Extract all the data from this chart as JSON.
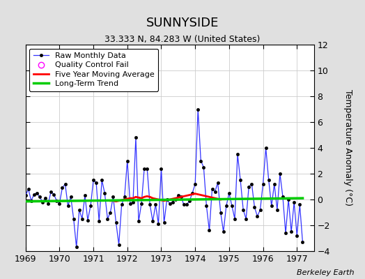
{
  "title": "SUNNYSIDE",
  "subtitle": "33.333 N, 84.283 W (United States)",
  "ylabel": "Temperature Anomaly (°C)",
  "watermark": "Berkeley Earth",
  "xlim": [
    1969.0,
    1977.5
  ],
  "ylim": [
    -4,
    12
  ],
  "yticks": [
    -4,
    -2,
    0,
    2,
    4,
    6,
    8,
    10,
    12
  ],
  "xticks": [
    1969,
    1970,
    1971,
    1972,
    1973,
    1974,
    1975,
    1976,
    1977
  ],
  "background_color": "#e0e0e0",
  "plot_bg_color": "#ffffff",
  "raw_color": "#3333ff",
  "raw_markersize": 3,
  "raw_linewidth": 0.9,
  "moving_avg_color": "#ff0000",
  "moving_avg_linewidth": 2.0,
  "trend_color": "#00cc00",
  "trend_linewidth": 2.5,
  "raw_x": [
    1969.0,
    1969.083,
    1969.167,
    1969.25,
    1969.333,
    1969.417,
    1969.5,
    1969.583,
    1969.667,
    1969.75,
    1969.833,
    1969.917,
    1970.0,
    1970.083,
    1970.167,
    1970.25,
    1970.333,
    1970.417,
    1970.5,
    1970.583,
    1970.667,
    1970.75,
    1970.833,
    1970.917,
    1971.0,
    1971.083,
    1971.167,
    1971.25,
    1971.333,
    1971.417,
    1971.5,
    1971.583,
    1971.667,
    1971.75,
    1971.833,
    1971.917,
    1972.0,
    1972.083,
    1972.167,
    1972.25,
    1972.333,
    1972.417,
    1972.5,
    1972.583,
    1972.667,
    1972.75,
    1972.833,
    1972.917,
    1973.0,
    1973.083,
    1973.167,
    1973.25,
    1973.333,
    1973.417,
    1973.5,
    1973.583,
    1973.667,
    1973.75,
    1973.833,
    1973.917,
    1974.0,
    1974.083,
    1974.167,
    1974.25,
    1974.333,
    1974.417,
    1974.5,
    1974.583,
    1974.667,
    1974.75,
    1974.833,
    1974.917,
    1975.0,
    1975.083,
    1975.167,
    1975.25,
    1975.333,
    1975.417,
    1975.5,
    1975.583,
    1975.667,
    1975.75,
    1975.833,
    1975.917,
    1976.0,
    1976.083,
    1976.167,
    1976.25,
    1976.333,
    1976.417,
    1976.5,
    1976.583,
    1976.667,
    1976.75,
    1976.833,
    1976.917,
    1977.0,
    1977.083,
    1977.167
  ],
  "raw_y": [
    0.3,
    0.8,
    -0.1,
    0.4,
    0.5,
    0.2,
    -0.2,
    0.1,
    -0.3,
    0.6,
    0.4,
    -0.1,
    -0.3,
    0.9,
    1.2,
    -0.5,
    0.2,
    -1.5,
    -3.7,
    -0.8,
    -1.5,
    0.3,
    -1.6,
    -0.5,
    1.5,
    1.3,
    -1.7,
    1.5,
    0.5,
    -1.5,
    -1.0,
    0.2,
    -1.8,
    -3.5,
    -0.4,
    0.2,
    3.0,
    -0.3,
    -0.2,
    4.8,
    -1.7,
    -0.3,
    2.4,
    2.4,
    -0.4,
    -1.7,
    -0.4,
    -1.9,
    2.4,
    -1.8,
    0.0,
    -0.3,
    -0.2,
    0.0,
    0.3,
    0.2,
    -0.4,
    -0.4,
    -0.1,
    0.5,
    1.2,
    7.0,
    3.0,
    2.5,
    -0.5,
    -2.4,
    0.8,
    0.6,
    1.3,
    -1.0,
    -2.5,
    -0.5,
    0.5,
    -0.5,
    -1.5,
    3.5,
    1.5,
    -0.8,
    -1.5,
    1.0,
    1.2,
    -0.6,
    -1.3,
    -0.8,
    1.2,
    4.0,
    1.5,
    -0.5,
    1.2,
    -0.8,
    2.0,
    0.2,
    -2.6,
    0.0,
    -2.5,
    -0.2,
    -2.8,
    -0.4,
    -3.3
  ],
  "moving_avg_x": [
    1971.5,
    1971.583,
    1971.667,
    1971.75,
    1971.833,
    1971.917,
    1972.0,
    1972.083,
    1972.167,
    1972.25,
    1972.333,
    1972.417,
    1972.5,
    1972.583,
    1972.667,
    1972.75,
    1972.833,
    1972.917,
    1973.0,
    1973.083,
    1973.167,
    1973.25,
    1973.333,
    1973.417,
    1973.5,
    1973.583,
    1973.667,
    1973.75,
    1973.833,
    1973.917,
    1974.0,
    1974.083,
    1974.167,
    1974.25,
    1974.333,
    1974.417,
    1974.5,
    1974.583,
    1974.667,
    1974.75
  ],
  "moving_avg_y": [
    -0.1,
    -0.1,
    -0.15,
    -0.1,
    -0.05,
    0.0,
    0.05,
    0.1,
    0.1,
    0.2,
    0.15,
    0.1,
    0.2,
    0.25,
    0.2,
    0.1,
    0.05,
    0.0,
    -0.05,
    -0.1,
    -0.05,
    0.0,
    0.05,
    0.1,
    0.15,
    0.2,
    0.25,
    0.3,
    0.35,
    0.4,
    0.45,
    0.4,
    0.35,
    0.3,
    0.25,
    0.2,
    0.15,
    0.1,
    0.05,
    0.0
  ],
  "trend_x": [
    1969.0,
    1977.17
  ],
  "trend_y": [
    -0.15,
    0.1
  ]
}
